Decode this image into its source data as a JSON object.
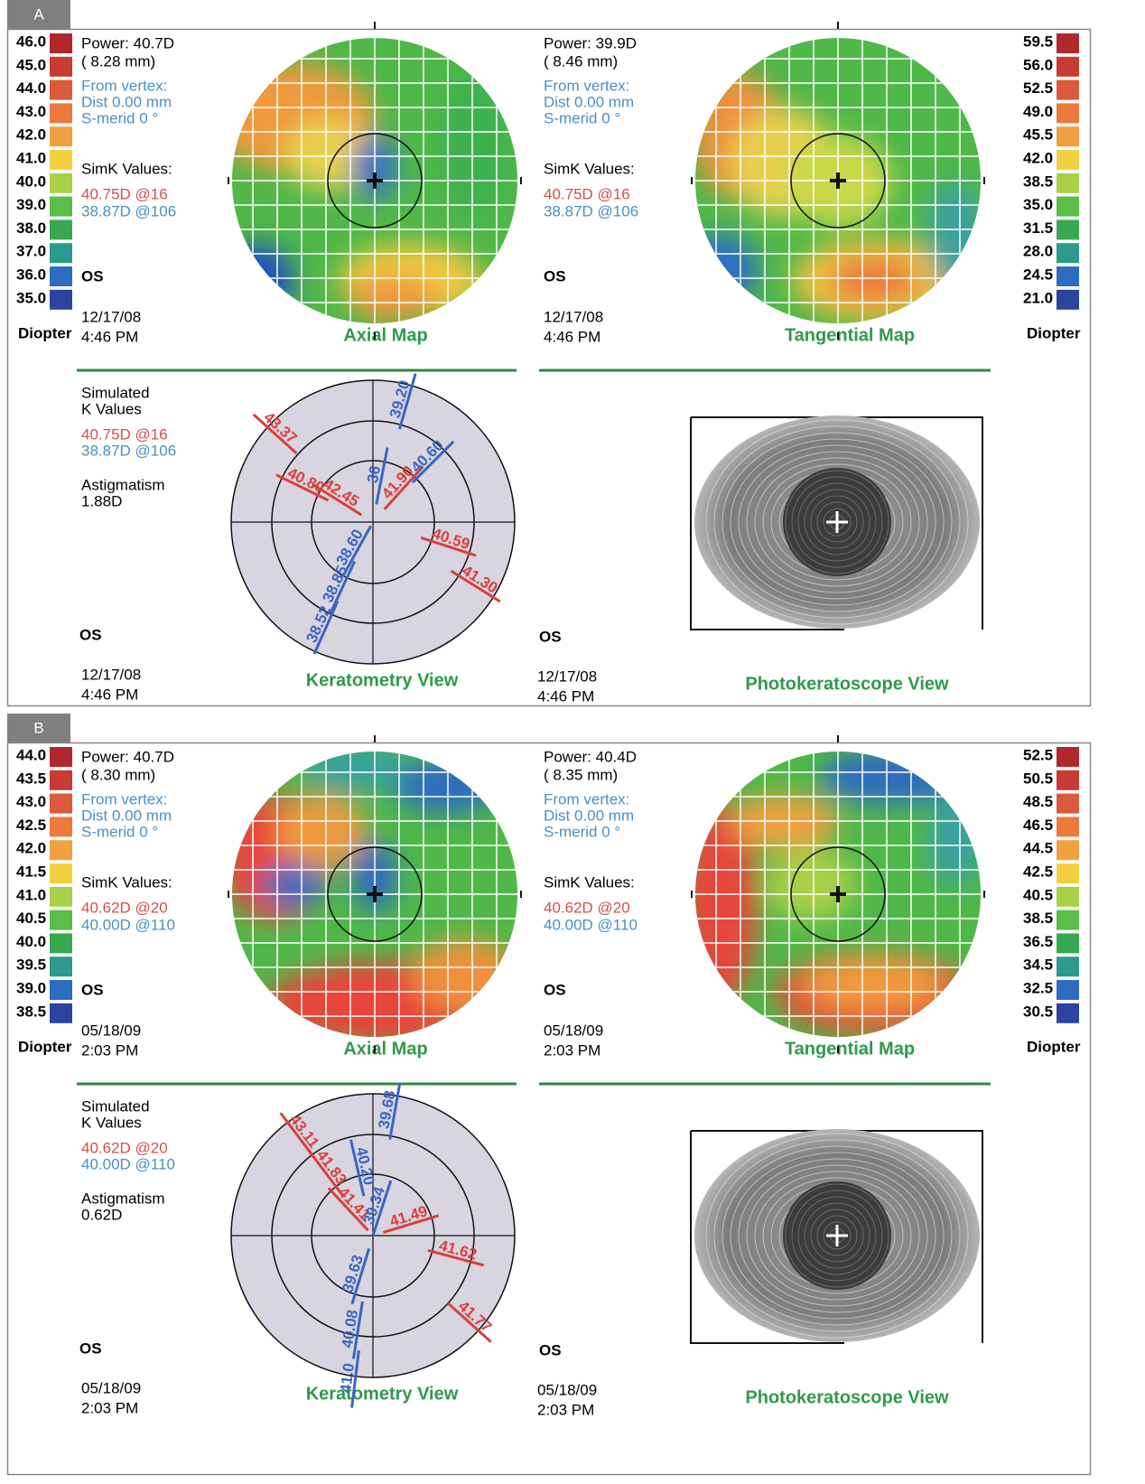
{
  "panels": [
    {
      "label": "A",
      "left_scale": {
        "ticks": [
          "46.0",
          "45.0",
          "44.0",
          "43.0",
          "42.0",
          "41.0",
          "40.0",
          "39.0",
          "38.0",
          "37.0",
          "36.0",
          "35.0"
        ],
        "unit": "Diopter"
      },
      "right_scale": {
        "ticks": [
          "59.5",
          "56.0",
          "52.5",
          "49.0",
          "45.5",
          "42.0",
          "38.5",
          "35.0",
          "31.5",
          "28.0",
          "24.5",
          "21.0"
        ],
        "unit": "Diopter"
      },
      "axial": {
        "power": "Power:  40.7D",
        "radius": "(   8.28 mm)",
        "from_vertex": "From vertex:",
        "dist": "Dist  0.00 mm",
        "s_merid": "S-merid     0 °",
        "simk_title": "SimK Values:",
        "simk_1": "40.75D @16",
        "simk_2": "38.87D @106",
        "eye": "OS",
        "date": "12/17/08",
        "time": "4:46 PM",
        "title": "Axial Map"
      },
      "tangential": {
        "power": "Power:  39.9D",
        "radius": "(   8.46 mm)",
        "from_vertex": "From vertex:",
        "dist": "Dist  0.00 mm",
        "s_merid": "S-merid     0 °",
        "simk_title": "SimK Values:",
        "simk_1": "40.75D @16",
        "simk_2": "38.87D @106",
        "eye": "OS",
        "date": "12/17/08",
        "time": "4:46 PM",
        "title": "Tangential Map"
      },
      "keratometry": {
        "sim_1": "Simulated",
        "sim_2": "K Values",
        "k1": "40.75D @16",
        "k2": "38.87D @106",
        "astig_title": "Astigmatism",
        "astig": "1.88D",
        "eye": "OS",
        "date": "12/17/08",
        "time": "4:46 PM",
        "title": "Keratometry View",
        "red_labels": [
          "43.37",
          "40.80",
          "42.45",
          "41.90",
          "40.59",
          "41.30"
        ],
        "blue_labels": [
          "39.20",
          "40.60",
          "36",
          "38.60",
          "38.85",
          "38.52"
        ]
      },
      "photo": {
        "eye": "OS",
        "date": "12/17/08",
        "time": "4:46 PM",
        "title": "Photokeratoscope View"
      }
    },
    {
      "label": "B",
      "left_scale": {
        "ticks": [
          "44.0",
          "43.5",
          "43.0",
          "42.5",
          "42.0",
          "41.5",
          "41.0",
          "40.5",
          "40.0",
          "39.5",
          "39.0",
          "38.5"
        ],
        "unit": "Diopter"
      },
      "right_scale": {
        "ticks": [
          "52.5",
          "50.5",
          "48.5",
          "46.5",
          "44.5",
          "42.5",
          "40.5",
          "38.5",
          "36.5",
          "34.5",
          "32.5",
          "30.5"
        ],
        "unit": "Diopter"
      },
      "axial": {
        "power": "Power:  40.7D",
        "radius": "(   8.30 mm)",
        "from_vertex": "From vertex:",
        "dist": "Dist  0.00 mm",
        "s_merid": "S-merid     0 °",
        "simk_title": "SimK Values:",
        "simk_1": "40.62D @20",
        "simk_2": "40.00D @110",
        "eye": "OS",
        "date": "05/18/09",
        "time": "2:03 PM",
        "title": "Axial Map"
      },
      "tangential": {
        "power": "Power:  40.4D",
        "radius": "(   8.35 mm)",
        "from_vertex": "From vertex:",
        "dist": "Dist  0.00 mm",
        "s_merid": "S-merid     0 °",
        "simk_title": "SimK Values:",
        "simk_1": "40.62D @20",
        "simk_2": "40.00D @110",
        "eye": "OS",
        "date": "05/18/09",
        "time": "2:03 PM",
        "title": "Tangential Map"
      },
      "keratometry": {
        "sim_1": "Simulated",
        "sim_2": "K Values",
        "k1": "40.62D @20",
        "k2": "40.00D @110",
        "astig_title": "Astigmatism",
        "astig": "0.62D",
        "eye": "OS",
        "date": "05/18/09",
        "time": "2:03 PM",
        "title": "Keratometry View",
        "red_labels": [
          "43.11",
          "41.83",
          "41.41",
          "41.49",
          "41.62",
          "41.77"
        ],
        "blue_labels": [
          "39.68",
          "40.20",
          "39.34",
          "39.63",
          "40.08",
          "41.0"
        ]
      },
      "photo": {
        "eye": "OS",
        "date": "05/18/09",
        "time": "2:03 PM",
        "title": "Photokeratoscope View"
      }
    }
  ]
}
